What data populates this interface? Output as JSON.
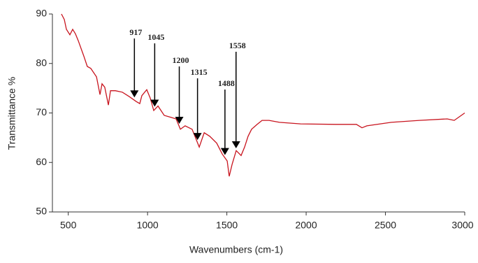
{
  "chart_data": {
    "type": "line",
    "xlabel": "Wavenumbers (cm-1)",
    "ylabel": "Transmittance %",
    "x": [
      457,
      475,
      488,
      510,
      528,
      545,
      563,
      598,
      620,
      642,
      678,
      700,
      713,
      730,
      753,
      766,
      797,
      841,
      885,
      929,
      951,
      964,
      995,
      1017,
      1039,
      1066,
      1105,
      1149,
      1180,
      1207,
      1237,
      1281,
      1326,
      1357,
      1392,
      1436,
      1471,
      1502,
      1515,
      1533,
      1559,
      1590,
      1612,
      1634,
      1656,
      1691,
      1722,
      1766,
      1832,
      1965,
      2185,
      2317,
      2352,
      2383,
      2537,
      2714,
      2890,
      2934,
      3000
    ],
    "series": [
      {
        "color": "#c8141e",
        "values": [
          90,
          88.9,
          86.9,
          85.8,
          86.9,
          86,
          84.6,
          81.5,
          79.4,
          79,
          77.3,
          73.7,
          75.9,
          75.2,
          71.6,
          74.5,
          74.5,
          74.2,
          73.3,
          72.3,
          71.9,
          73.5,
          74.7,
          73,
          70.5,
          71.4,
          69.5,
          69.1,
          68.8,
          66.7,
          67.4,
          66.7,
          63.1,
          66,
          65.3,
          63.9,
          61.7,
          60.3,
          57.2,
          59.6,
          62.4,
          61.4,
          63.1,
          65.3,
          66.7,
          67.7,
          68.5,
          68.5,
          68.1,
          67.8,
          67.7,
          67.7,
          67,
          67.4,
          68.1,
          68.5,
          68.8,
          68.5,
          70
        ]
      }
    ],
    "xlim": [
      400,
      3000
    ],
    "xticks": [
      500,
      1000,
      1500,
      2000,
      2500,
      3000
    ],
    "ylim": [
      50,
      90
    ],
    "yticks": [
      50,
      60,
      70,
      80,
      90
    ],
    "annotations": [
      "917",
      "1045",
      "1200",
      "1315",
      "1488",
      "1558"
    ]
  }
}
